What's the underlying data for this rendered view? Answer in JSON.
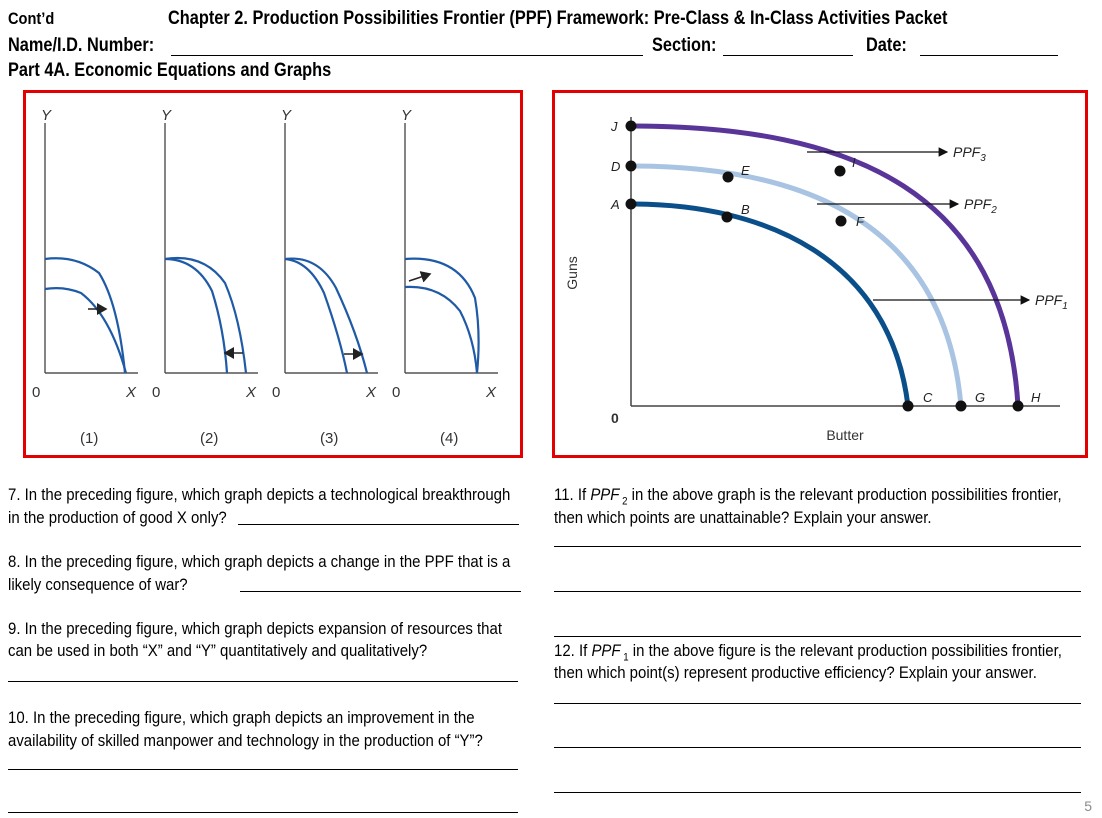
{
  "header": {
    "contd": "Cont’d",
    "title": "Chapter  2.  Production Possibilities Frontier (PPF) Framework: Pre-Class & In-Class Activities Packet",
    "name_label": "Name/I.D. Number:",
    "section_label": "Section:",
    "date_label": "Date:",
    "part": "Part 4A. Economic Equations and Graphs"
  },
  "left_figure": {
    "axis_y": "Y",
    "axis_x": "X",
    "origin": "0",
    "panels": [
      "(1)",
      "(2)",
      "(3)",
      "(4)"
    ]
  },
  "right_figure": {
    "y_label": "Guns",
    "x_label": "Butter",
    "origin": "0",
    "points": [
      "J",
      "D",
      "A",
      "E",
      "B",
      "I",
      "F",
      "C",
      "G",
      "H"
    ],
    "ppf_labels": {
      "ppf": "PPF",
      "sub3": "3",
      "sub2": "2",
      "sub1": "1"
    },
    "colors": {
      "ppf1": "#0b4f8a",
      "ppf2": "#a8c4e2",
      "ppf3": "#5a3599",
      "frame": "#e20000"
    }
  },
  "questions": {
    "q7_l1": "7. In the preceding figure, which graph depicts a technological breakthrough",
    "q7_l2": "in the production of good X only?",
    "q8_l1": "8. In the preceding figure, which graph depicts a change in the PPF that is a",
    "q8_l2": "likely consequence of war?",
    "q9_l1": "9. In the  preceding figure, which graph depicts expansion of resources  that",
    "q9_l2": "can be used in both “X” and “Y” quantitatively and qualitatively?",
    "q10_l1": "10. In the preceding figure, which graph depicts an improvement in  the",
    "q10_l2": "availability of skilled manpower and technology in the production of  “Y”?",
    "q11_pre": "11. If",
    "q11_ppf": "PPF",
    "q11_sub": "2",
    "q11_post": "in the above graph is the relevant production possibilities frontier,",
    "q11_l2": "then which points are unattainable? Explain your answer.",
    "q12_pre": "12. If",
    "q12_ppf": "PPF",
    "q12_sub": "1",
    "q12_post": "in the above figure is the relevant production possibilities frontier,",
    "q12_l2": "then which point(s) represent productive efficiency? Explain your answer."
  },
  "page_number": "5"
}
